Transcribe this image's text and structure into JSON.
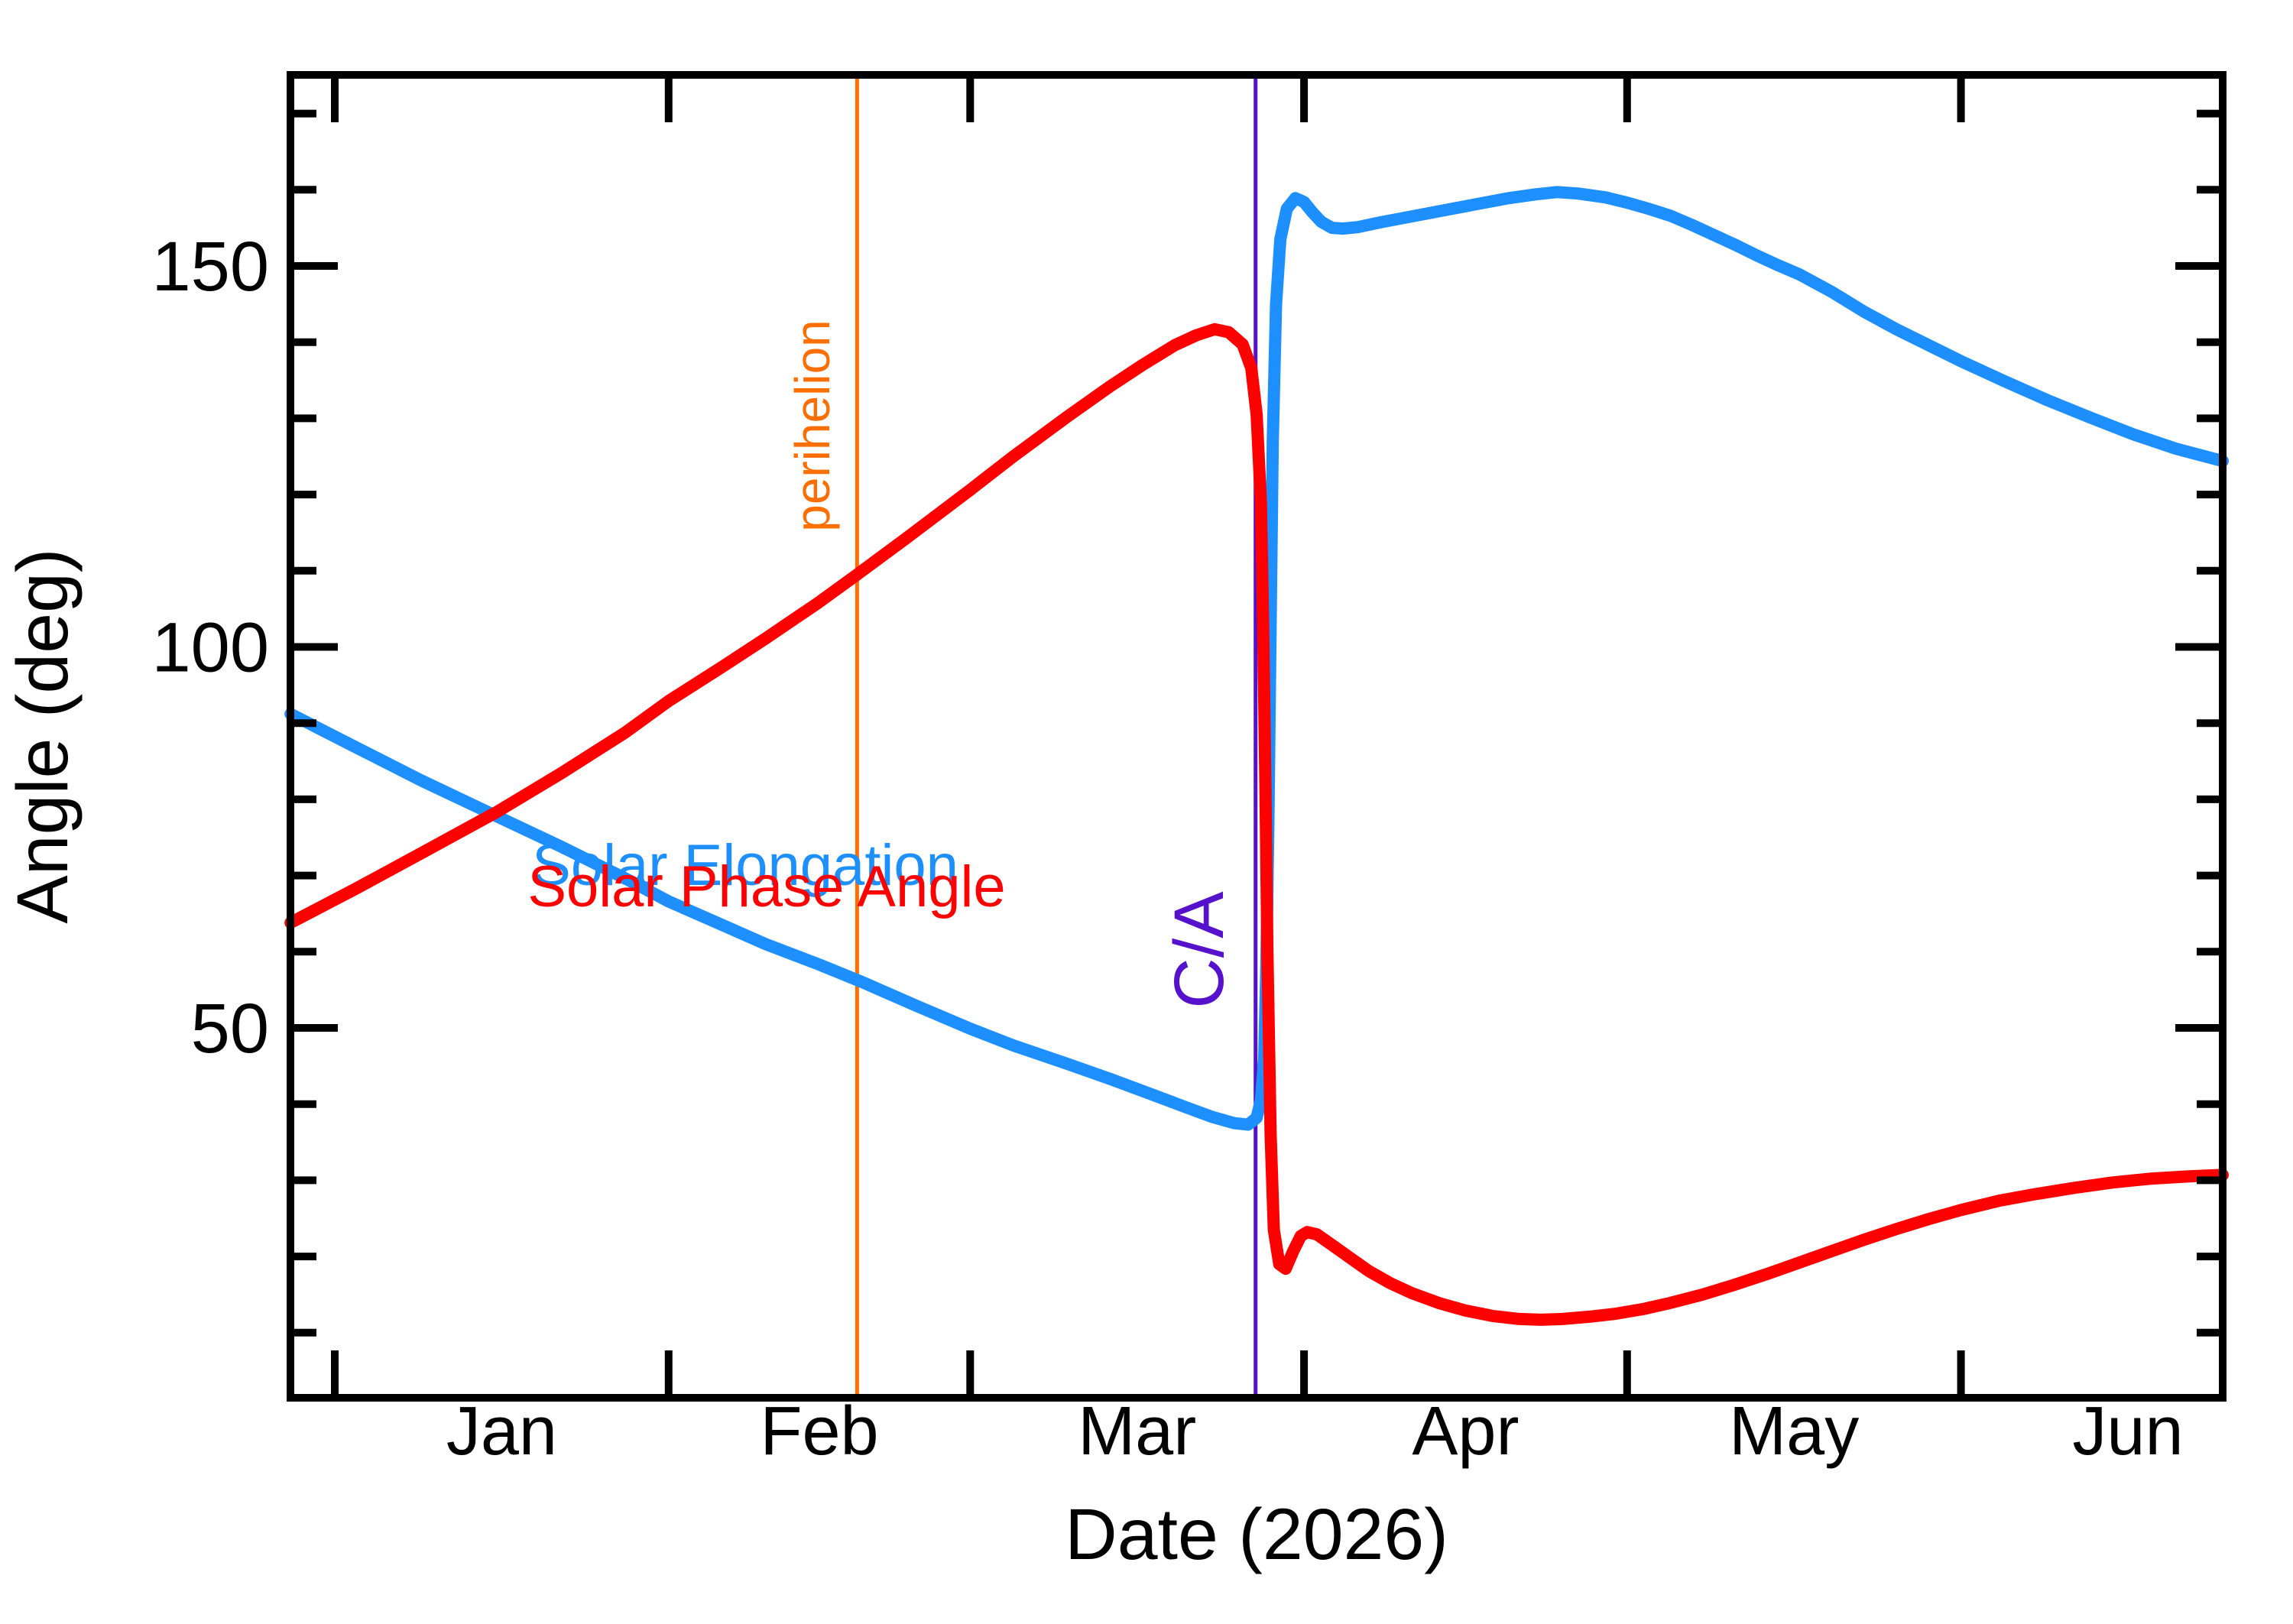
{
  "chart_data": {
    "type": "line",
    "title": "",
    "xlabel": "Date (2026)",
    "ylabel": "Angle (deg)",
    "background_color": "#ffffff",
    "axis_color": "#000000",
    "grid": false,
    "x_unit": "days from 2026-01-01",
    "xlim_days": [
      -4.1,
      175.3
    ],
    "ylim_deg": [
      1.5,
      175.1
    ],
    "x_axis": {
      "months": [
        {
          "label": "Jan",
          "tick_day": 0,
          "label_day": 15.5
        },
        {
          "label": "Feb",
          "tick_day": 31,
          "label_day": 45
        },
        {
          "label": "Mar",
          "tick_day": 59,
          "label_day": 74.5
        },
        {
          "label": "Apr",
          "tick_day": 90,
          "label_day": 105
        },
        {
          "label": "May",
          "tick_day": 120,
          "label_day": 135.5
        },
        {
          "label": "Jun",
          "tick_day": 151,
          "label_day": 166.5
        }
      ]
    },
    "y_axis": {
      "major_ticks": [
        {
          "value": 150,
          "label": "150"
        },
        {
          "value": 100,
          "label": "100"
        },
        {
          "value": 50,
          "label": "50"
        }
      ],
      "minor_tick_step": 10,
      "minor_tick_range": [
        10,
        170
      ]
    },
    "events": [
      {
        "label": "perihelion",
        "day": 48.5,
        "color": "#FF6E00",
        "date_approx": "2026-02-18"
      },
      {
        "label": "C/A",
        "day": 85.5,
        "color": "#5511CC",
        "date_approx": "2026-03-27"
      }
    ],
    "series": [
      {
        "name": "Solar Elongation",
        "color": "#1E8FFF",
        "points": [
          [
            -4.1,
            91.2
          ],
          [
            2,
            86.8
          ],
          [
            8,
            82.5
          ],
          [
            15,
            77.8
          ],
          [
            21,
            73.8
          ],
          [
            27,
            69.6
          ],
          [
            31,
            66.6
          ],
          [
            36,
            63.5
          ],
          [
            40,
            61
          ],
          [
            45,
            58.3
          ],
          [
            49,
            56
          ],
          [
            54,
            52.9
          ],
          [
            59,
            49.9
          ],
          [
            63,
            47.7
          ],
          [
            68,
            45.3
          ],
          [
            72,
            43.3
          ],
          [
            76,
            41.2
          ],
          [
            79,
            39.6
          ],
          [
            81.5,
            38.3
          ],
          [
            83.5,
            37.5
          ],
          [
            84.8,
            37.3
          ],
          [
            85.6,
            38.2
          ],
          [
            86,
            40.5
          ],
          [
            86.3,
            46
          ],
          [
            86.5,
            58
          ],
          [
            86.7,
            78
          ],
          [
            86.9,
            103
          ],
          [
            87.1,
            127
          ],
          [
            87.4,
            145
          ],
          [
            87.8,
            153.5
          ],
          [
            88.4,
            157.5
          ],
          [
            89.2,
            158.9
          ],
          [
            90,
            158.4
          ],
          [
            90.8,
            157
          ],
          [
            91.6,
            155.8
          ],
          [
            92.6,
            155
          ],
          [
            93.6,
            154.9
          ],
          [
            95,
            155.1
          ],
          [
            97,
            155.7
          ],
          [
            100,
            156.5
          ],
          [
            103,
            157.3
          ],
          [
            106,
            158.1
          ],
          [
            109,
            158.9
          ],
          [
            111.5,
            159.4
          ],
          [
            113.5,
            159.7
          ],
          [
            115.5,
            159.5
          ],
          [
            118,
            159
          ],
          [
            120,
            158.3
          ],
          [
            122,
            157.5
          ],
          [
            124,
            156.6
          ],
          [
            126,
            155.4
          ],
          [
            128,
            154.1
          ],
          [
            130,
            152.8
          ],
          [
            132,
            151.4
          ],
          [
            134,
            150.1
          ],
          [
            136,
            148.9
          ],
          [
            139,
            146.6
          ],
          [
            142,
            144
          ],
          [
            145,
            141.7
          ],
          [
            148,
            139.6
          ],
          [
            151,
            137.5
          ],
          [
            155,
            134.9
          ],
          [
            159,
            132.4
          ],
          [
            163,
            130.1
          ],
          [
            167,
            127.9
          ],
          [
            171,
            126
          ],
          [
            175.3,
            124.4
          ]
        ]
      },
      {
        "name": "Solar Phase Angle",
        "color": "#FF0000",
        "points": [
          [
            -4.1,
            63.8
          ],
          [
            2,
            68.3
          ],
          [
            8,
            72.9
          ],
          [
            15,
            78.3
          ],
          [
            21,
            83.4
          ],
          [
            27,
            88.8
          ],
          [
            31,
            92.9
          ],
          [
            36,
            97.4
          ],
          [
            40,
            101.1
          ],
          [
            45,
            105.9
          ],
          [
            48.5,
            109.5
          ],
          [
            53,
            114.2
          ],
          [
            59,
            120.6
          ],
          [
            63,
            125
          ],
          [
            68,
            130.2
          ],
          [
            72,
            134.2
          ],
          [
            75,
            137
          ],
          [
            78,
            139.6
          ],
          [
            80,
            140.9
          ],
          [
            81.7,
            141.7
          ],
          [
            83,
            141.3
          ],
          [
            84.3,
            139.7
          ],
          [
            85.1,
            136.6
          ],
          [
            85.6,
            130.5
          ],
          [
            86,
            119
          ],
          [
            86.2,
            103
          ],
          [
            86.4,
            83
          ],
          [
            86.6,
            60
          ],
          [
            86.9,
            36
          ],
          [
            87.2,
            23.5
          ],
          [
            87.7,
            19
          ],
          [
            88.3,
            18.4
          ],
          [
            89,
            20.7
          ],
          [
            89.7,
            22.7
          ],
          [
            90.3,
            23.2
          ],
          [
            91.2,
            22.9
          ],
          [
            92.5,
            21.6
          ],
          [
            94,
            20.1
          ],
          [
            96,
            18.1
          ],
          [
            98,
            16.5
          ],
          [
            100,
            15.2
          ],
          [
            102.5,
            13.9
          ],
          [
            105,
            12.9
          ],
          [
            107.5,
            12.2
          ],
          [
            110,
            11.8
          ],
          [
            112,
            11.7
          ],
          [
            114,
            11.8
          ],
          [
            116.5,
            12.1
          ],
          [
            119,
            12.5
          ],
          [
            121.5,
            13.1
          ],
          [
            124,
            13.9
          ],
          [
            127,
            15
          ],
          [
            130,
            16.3
          ],
          [
            133,
            17.7
          ],
          [
            136,
            19.2
          ],
          [
            139,
            20.7
          ],
          [
            142,
            22.2
          ],
          [
            145,
            23.6
          ],
          [
            148,
            24.9
          ],
          [
            151,
            26.1
          ],
          [
            154.5,
            27.3
          ],
          [
            158,
            28.2
          ],
          [
            161.5,
            29
          ],
          [
            165,
            29.7
          ],
          [
            168.5,
            30.2
          ],
          [
            172,
            30.5
          ],
          [
            175.3,
            30.7
          ]
        ]
      }
    ],
    "annotations_note": "blue elongation minimum 37.3 deg ~Mar 23; red phase maximum 141.8 deg ~Mar 23; sharp transition at C/A ~Mar 27-28; blue broad maximum ~159.7 deg ~Apr 24; red minimum ~11.7 deg ~Apr 22"
  }
}
